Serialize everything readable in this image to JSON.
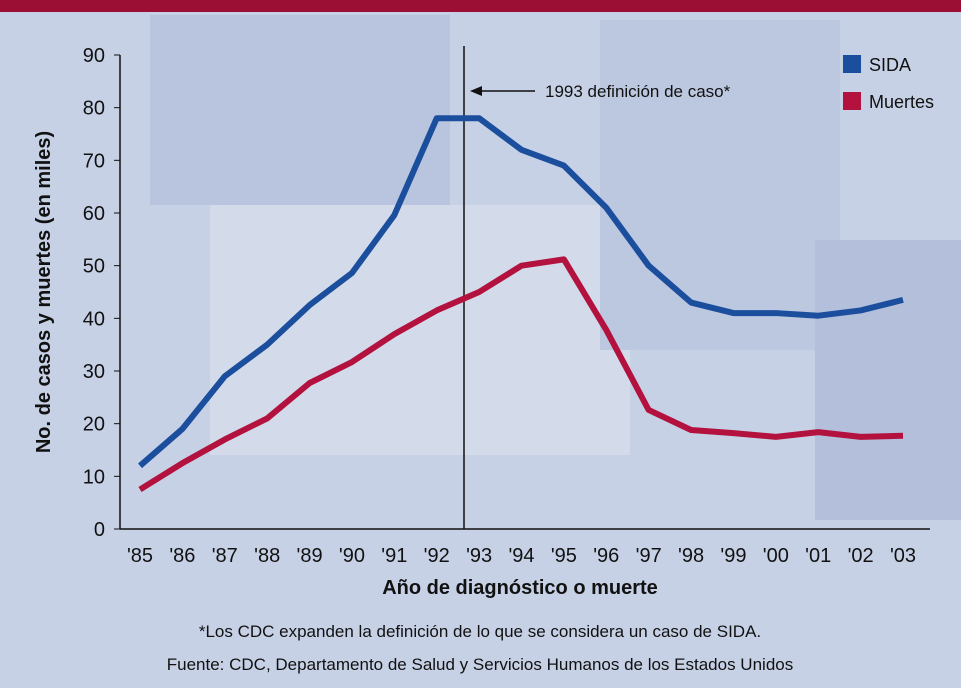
{
  "chart_data": {
    "type": "line",
    "y_label": "No. de casos y muertes (en miles)",
    "x_label": "Año de diagnóstico o muerte",
    "annotation": "1993 definición de caso*",
    "footnote": "*Los CDC expanden la definición de lo que se considera un caso de SIDA.",
    "source": "Fuente: CDC, Departamento de Salud y Servicios Humanos de los Estados Unidos",
    "categories": [
      "'85",
      "'86",
      "'87",
      "'88",
      "'89",
      "'90",
      "'91",
      "'92",
      "'93",
      "'94",
      "'95",
      "'96",
      "'97",
      "'98",
      "'99",
      "'00",
      "'01",
      "'02",
      "'03"
    ],
    "series": [
      {
        "name": "SIDA",
        "color": "#1c4e9e",
        "values": [
          12,
          19,
          29,
          35,
          42.5,
          48.6,
          59.6,
          78,
          78,
          72,
          69,
          61,
          50,
          43,
          41,
          41,
          40.5,
          41.5,
          43.5
        ]
      },
      {
        "name": "Muertes",
        "color": "#b3123f",
        "values": [
          7.5,
          12.5,
          17,
          21,
          27.7,
          31.7,
          37,
          41.5,
          45,
          50,
          51.2,
          37.8,
          22.6,
          18.8,
          18.2,
          17.5,
          18.4,
          17.5,
          17.7
        ]
      }
    ],
    "ylim": [
      0,
      90
    ],
    "yticks": [
      0,
      10,
      20,
      30,
      40,
      50,
      60,
      70,
      80,
      90
    ],
    "legend": "top-right"
  }
}
